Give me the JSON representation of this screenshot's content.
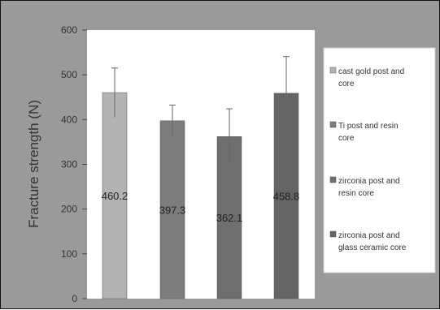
{
  "chart_data": {
    "type": "bar",
    "title": "",
    "xlabel": "",
    "ylabel": "Fracture strength (N)",
    "ylim": [
      0,
      600
    ],
    "yticks": [
      0,
      100,
      200,
      300,
      400,
      500,
      600
    ],
    "grid": false,
    "legend_position": "right",
    "categories": [
      "cast gold post and core",
      "Ti post and resin core",
      "zirconia post and resin core",
      "zirconia post and glass ceramic core"
    ],
    "values": [
      460.2,
      397.3,
      362.1,
      458.8
    ],
    "error": [
      55,
      35,
      62,
      82
    ],
    "data_labels": [
      "460.2",
      "397.3",
      "362.1",
      "458.8"
    ],
    "legend": [
      [
        "cast gold post and",
        "core"
      ],
      [
        "Ti post and resin",
        "core"
      ],
      [
        "zirconia post and",
        "resin core"
      ],
      [
        "zirconia post and",
        "glass ceramic core"
      ]
    ],
    "colors": [
      "#b3b3b3",
      "#7d7d7d",
      "#6f6f6f",
      "#656565"
    ],
    "plot_background": "#ffffff",
    "frame_background": "#9a9a9a"
  }
}
